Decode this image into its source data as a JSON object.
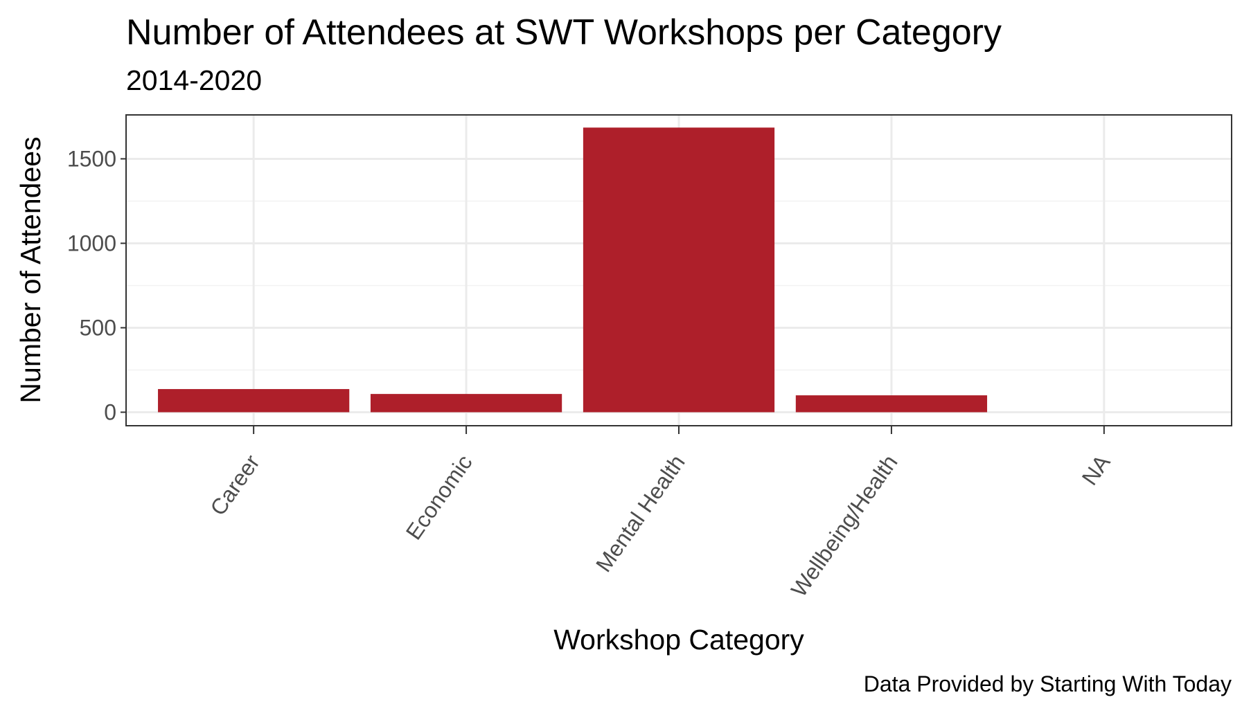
{
  "chart_data": {
    "type": "bar",
    "title": "Number of Attendees at SWT Workshops per Category",
    "subtitle": "2014-2020",
    "xlabel": "Workshop Category",
    "ylabel": "Number of Attendees",
    "caption": "Data Provided by Starting With Today",
    "categories": [
      "Career",
      "Economic",
      "Mental Health",
      "Wellbeing/Health",
      "NA"
    ],
    "values": [
      137,
      108,
      1685,
      100,
      0
    ],
    "ylim": [
      -80,
      1760
    ],
    "yticks": [
      0,
      500,
      1000,
      1500
    ],
    "ytick_labels": [
      "0",
      "500",
      "1000",
      "1500"
    ],
    "grid": true,
    "legend": "none",
    "colors": {
      "bar": "#ae1f2a",
      "panel_border": "#333333",
      "grid_major": "#ebebeb",
      "grid_minor": "#f2f2f2",
      "tick_text": "#4d4d4d"
    }
  }
}
